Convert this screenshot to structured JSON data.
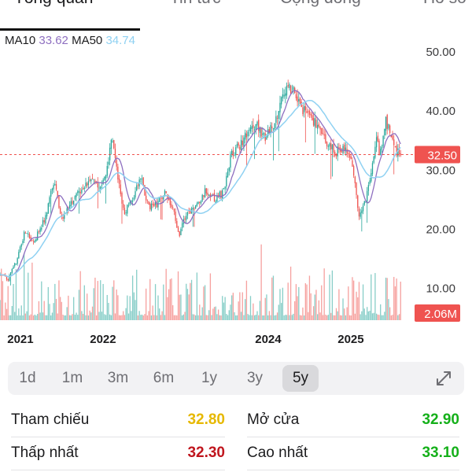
{
  "tabs": [
    {
      "label": "Tổng quan",
      "active": true
    },
    {
      "label": "Tin tức",
      "active": false
    },
    {
      "label": "Cộng đồng",
      "active": false
    },
    {
      "label": "Hồ sơ",
      "active": false
    }
  ],
  "ma_legend": {
    "ma10_label": "MA10",
    "ma10_value": "33.62",
    "ma50_label": "MA50",
    "ma50_value": "34.74"
  },
  "chart_data": {
    "type": "candlestick",
    "y_ticks": [
      "50.00",
      "40.00",
      "30.00",
      "20.00",
      "10.00"
    ],
    "y_values": [
      50,
      40,
      30,
      20,
      10
    ],
    "ylim": [
      4.5,
      52
    ],
    "x_labels": [
      {
        "label": "2021",
        "year": 2021.0
      },
      {
        "label": "2022",
        "year": 2022.0
      },
      {
        "label": "2024",
        "year": 2024.0
      },
      {
        "label": "2025",
        "year": 2025.0
      }
    ],
    "xlim": [
      2020.95,
      2025.95
    ],
    "price_path": [
      [
        2020.95,
        12.2
      ],
      [
        2021.05,
        11.5
      ],
      [
        2021.15,
        14.5
      ],
      [
        2021.25,
        19.5
      ],
      [
        2021.35,
        17.5
      ],
      [
        2021.5,
        22.0
      ],
      [
        2021.6,
        28.0
      ],
      [
        2021.7,
        21.5
      ],
      [
        2021.85,
        25.0
      ],
      [
        2021.95,
        27.0
      ],
      [
        2022.05,
        28.5
      ],
      [
        2022.15,
        26.5
      ],
      [
        2022.25,
        30.0
      ],
      [
        2022.3,
        36.0
      ],
      [
        2022.38,
        28.0
      ],
      [
        2022.45,
        22.5
      ],
      [
        2022.55,
        25.0
      ],
      [
        2022.65,
        29.0
      ],
      [
        2022.75,
        23.5
      ],
      [
        2022.85,
        24.0
      ],
      [
        2022.95,
        26.5
      ],
      [
        2023.05,
        23.0
      ],
      [
        2023.12,
        19.0
      ],
      [
        2023.2,
        22.5
      ],
      [
        2023.3,
        23.5
      ],
      [
        2023.45,
        26.5
      ],
      [
        2023.55,
        25.0
      ],
      [
        2023.65,
        26.0
      ],
      [
        2023.75,
        32.5
      ],
      [
        2023.85,
        34.0
      ],
      [
        2023.95,
        36.5
      ],
      [
        2024.05,
        37.5
      ],
      [
        2024.15,
        35.5
      ],
      [
        2024.25,
        37.0
      ],
      [
        2024.33,
        40.5
      ],
      [
        2024.42,
        44.5
      ],
      [
        2024.5,
        43.0
      ],
      [
        2024.6,
        40.5
      ],
      [
        2024.7,
        39.5
      ],
      [
        2024.8,
        37.0
      ],
      [
        2024.9,
        34.5
      ],
      [
        2025.0,
        33.0
      ],
      [
        2025.1,
        33.5
      ],
      [
        2025.2,
        32.5
      ],
      [
        2025.3,
        22.0
      ],
      [
        2025.38,
        25.0
      ],
      [
        2025.45,
        30.0
      ],
      [
        2025.5,
        35.5
      ],
      [
        2025.55,
        32.5
      ],
      [
        2025.62,
        38.0
      ],
      [
        2025.68,
        36.0
      ],
      [
        2025.75,
        33.0
      ],
      [
        2025.8,
        32.5
      ]
    ],
    "last_price": 32.5,
    "last_price_label": "32.50",
    "volume_label": "2.06M",
    "up_color": "#26a69a",
    "down_color": "#ef5350",
    "ma10_color": "#8e6fc0",
    "ma50_color": "#8fd1f2",
    "price_badge_color": "#ef5350"
  },
  "ranges": [
    {
      "label": "1d",
      "active": false
    },
    {
      "label": "1m",
      "active": false
    },
    {
      "label": "3m",
      "active": false
    },
    {
      "label": "6m",
      "active": false
    },
    {
      "label": "1y",
      "active": false
    },
    {
      "label": "3y",
      "active": false
    },
    {
      "label": "5y",
      "active": true
    }
  ],
  "expand_icon": "expand-arrows-icon",
  "stats": {
    "reference_label": "Tham chiếu",
    "reference_value": "32.80",
    "reference_color": "#e6b800",
    "open_label": "Mở cửa",
    "open_value": "32.90",
    "open_color": "#15b01a",
    "low_label": "Thấp nhất",
    "low_value": "32.30",
    "low_color": "#c0161e",
    "high_label": "Cao nhất",
    "high_value": "33.10",
    "high_color": "#15b01a"
  }
}
